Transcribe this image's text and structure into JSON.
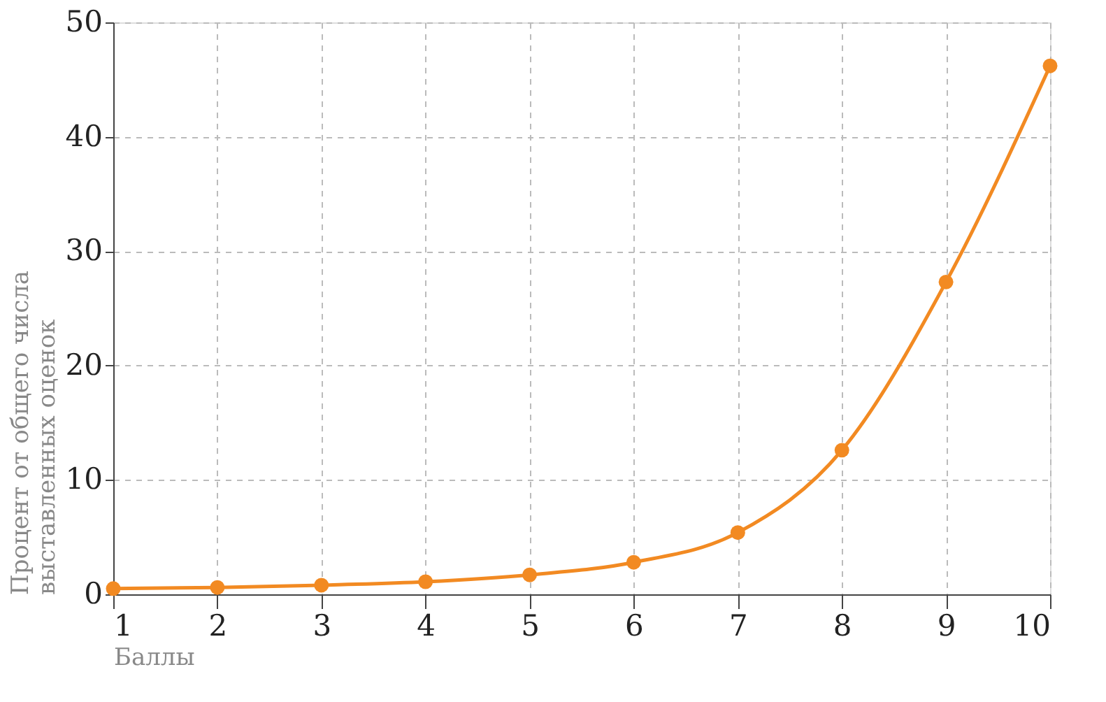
{
  "chart_data": {
    "type": "line",
    "xlabel": "Баллы",
    "ylabel": "Процент от общего числа выставленных оценок",
    "x": [
      1,
      2,
      3,
      4,
      5,
      6,
      7,
      8,
      9,
      10
    ],
    "series": [
      {
        "color": "#f28a22",
        "values": [
          0.5,
          0.6,
          0.8,
          1.1,
          1.7,
          2.8,
          5.4,
          12.6,
          27.3,
          46.2
        ]
      }
    ],
    "xlim": [
      1,
      10
    ],
    "xticks": [
      1,
      2,
      3,
      4,
      5,
      6,
      7,
      8,
      9,
      10
    ],
    "ylim": [
      0,
      50
    ],
    "yticks": [
      0,
      10,
      20,
      30,
      40,
      50
    ],
    "grid": true,
    "marker": "circle",
    "line_style": "solid"
  }
}
